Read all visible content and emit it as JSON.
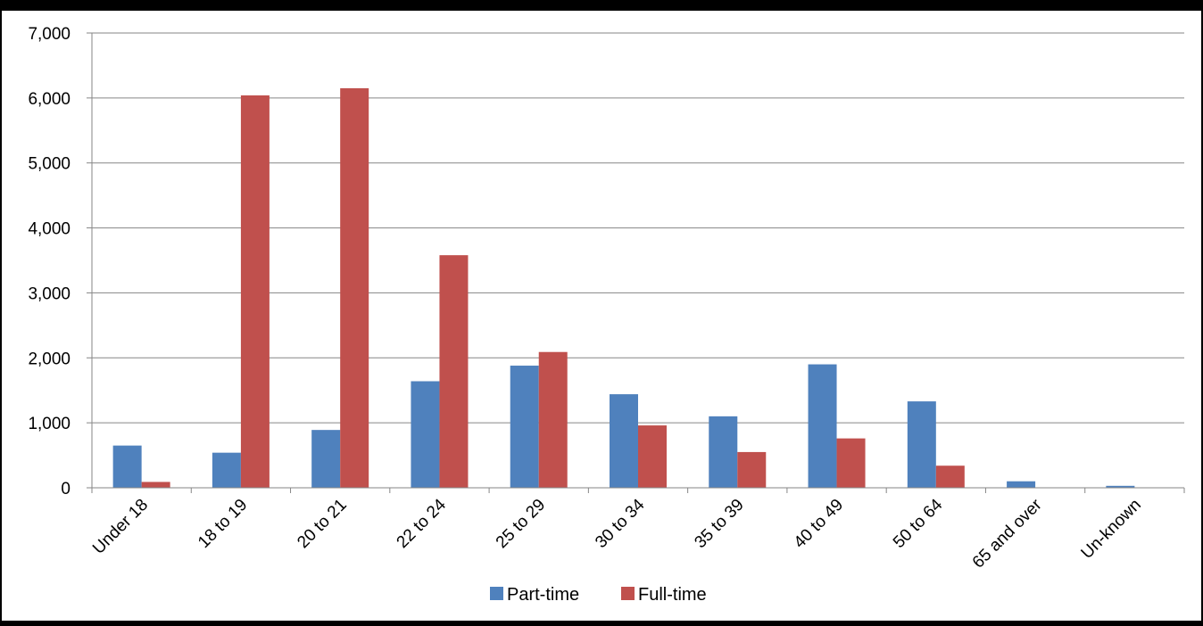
{
  "chart_data": {
    "type": "bar",
    "title": "",
    "xlabel": "",
    "ylabel": "",
    "ylim": [
      0,
      7000
    ],
    "yticks": [
      0,
      1000,
      2000,
      3000,
      4000,
      5000,
      6000,
      7000
    ],
    "ytick_labels": [
      "0",
      "1,000",
      "2,000",
      "3,000",
      "4,000",
      "5,000",
      "6,000",
      "7,000"
    ],
    "grid": true,
    "legend_position": "bottom",
    "categories": [
      "Under 18",
      "18 to 19",
      "20 to 21",
      "22 to 24",
      "25 to 29",
      "30 to 34",
      "35 to 39",
      "40 to 49",
      "50 to 64",
      "65 and over",
      "Un-known"
    ],
    "series": [
      {
        "name": "Part-time",
        "color": "#4f81bd",
        "values": [
          650,
          540,
          890,
          1640,
          1880,
          1440,
          1100,
          1900,
          1330,
          100,
          30
        ]
      },
      {
        "name": "Full-time",
        "color": "#c0504d",
        "values": [
          90,
          6040,
          6150,
          3580,
          2090,
          960,
          550,
          760,
          340,
          0,
          0
        ]
      }
    ]
  }
}
